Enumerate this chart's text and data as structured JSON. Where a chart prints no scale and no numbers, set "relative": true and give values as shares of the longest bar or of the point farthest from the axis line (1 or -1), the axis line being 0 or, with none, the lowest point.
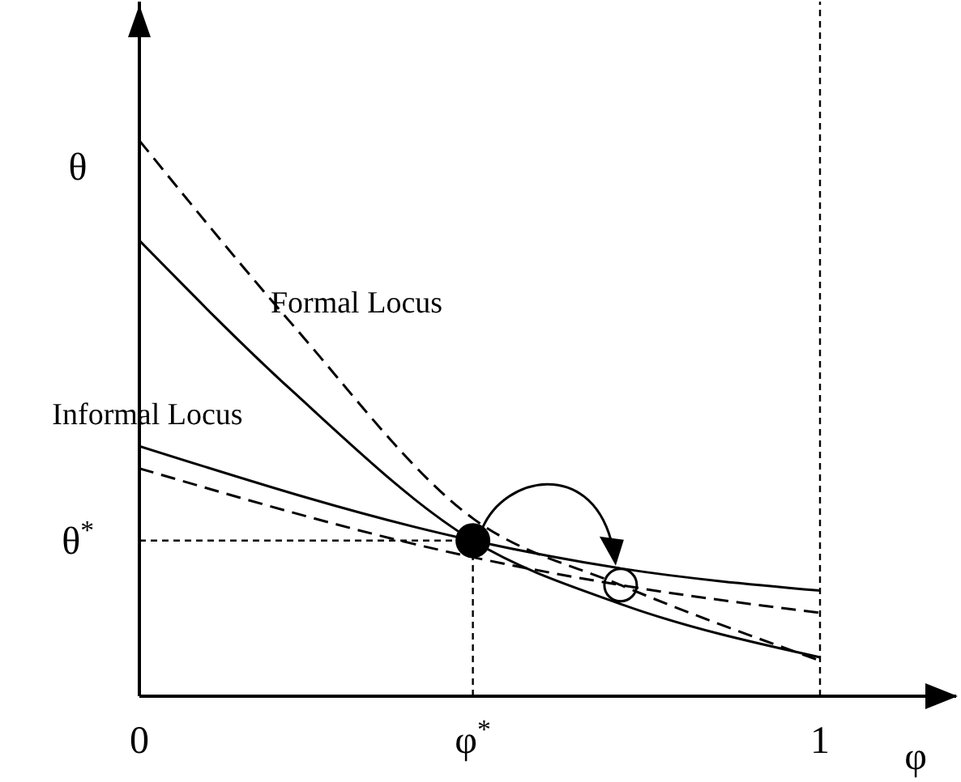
{
  "chart_data": {
    "type": "line",
    "relative": true,
    "xlabel": "φ",
    "ylabel": "θ",
    "grid": false,
    "legend": false,
    "xlim": [
      0,
      1.2
    ],
    "xticks": [
      0,
      {
        "value": 0.49,
        "label": "φ$^{*}$"
      },
      1
    ],
    "series": [
      {
        "color": "#000000",
        "line_style": "dashed",
        "x": [
          0,
          0.224,
          0.49,
          0.707,
          1
        ],
        "values": [
          1,
          0.67,
          0.32,
          0.2,
          0.064
        ]
      },
      {
        "color": "#000000",
        "line_style": "solid",
        "x": [
          0,
          0.224,
          0.49,
          0.707,
          1
        ],
        "values": [
          0.82,
          0.55,
          0.28,
          0.166,
          0.07
        ]
      },
      {
        "color": "#000000",
        "line_style": "solid",
        "x": [
          0,
          0.49,
          0.707,
          1
        ],
        "values": [
          0.45,
          0.28,
          0.23,
          0.19
        ]
      },
      {
        "color": "#000000",
        "line_style": "dashed",
        "x": [
          0,
          0.49,
          0.707,
          1
        ],
        "values": [
          0.41,
          0.25,
          0.2,
          0.15
        ]
      },
      {
        "type": "scatter",
        "marker": "circle",
        "x": [
          0.49,
          0.707
        ],
        "values": [
          0.28,
          0.2
        ],
        "colors": [
          "#000000",
          null
        ]
      }
    ],
    "ref_lines": [
      {
        "axis": "y",
        "value": 0.28,
        "label": "θ$^{*}$",
        "line_style": "dashed"
      },
      {
        "axis": "x",
        "value": 0.49,
        "label": null,
        "line_style": "dashed"
      },
      {
        "axis": "x",
        "value": 1,
        "label": null,
        "line_style": "dashed"
      }
    ],
    "annotations": [
      "Formal Locus",
      "Informal Locus"
    ]
  }
}
